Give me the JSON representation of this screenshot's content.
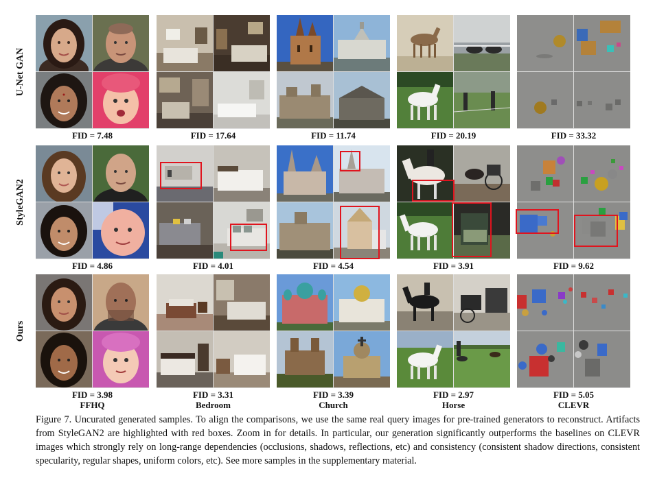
{
  "rows": [
    {
      "label": "U-Net GAN",
      "fids": [
        "FID = 7.48",
        "FID = 17.64",
        "FID = 11.74",
        "FID = 20.19",
        "FID = 33.32"
      ]
    },
    {
      "label": "StyleGAN2",
      "fids": [
        "FID = 4.86",
        "FID = 4.01",
        "FID = 4.54",
        "FID = 3.91",
        "FID = 9.62"
      ]
    },
    {
      "label": "Ours",
      "fids": [
        "FID = 3.98",
        "FID = 3.31",
        "FID = 3.39",
        "FID = 2.97",
        "FID = 5.05"
      ]
    }
  ],
  "columns": [
    "FFHQ",
    "Bedroom",
    "Church",
    "Horse",
    "CLEVR"
  ],
  "caption": "Figure 7. Uncurated generated samples. To align the comparisons, we use the same real query images for pre-trained generators to reconstruct. Artifacts from StyleGAN2 are highlighted with red boxes. Zoom in for details. In particular, our generation significantly outperforms the baselines on CLEVR images which strongly rely on long-range dependencies (occlusions, shadows, reflections, etc) and consistency (consistent shadow directions, consistent specularity, regular shapes, uniform colors, etc). See more samples in the supplementary material.",
  "highlight_color": "#e0141e"
}
